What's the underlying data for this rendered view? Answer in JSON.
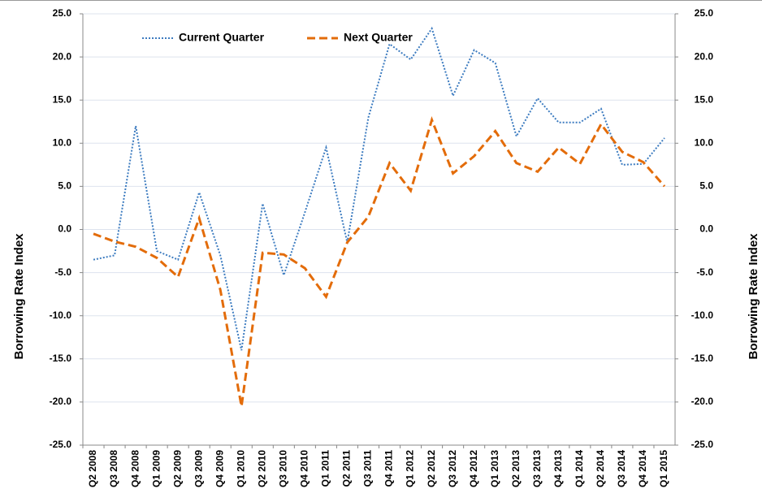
{
  "chart_data": {
    "type": "line",
    "y_label": "Borrowing  Rate Index",
    "y2_label": "Borrowing  Rate Index",
    "categories": [
      "Q2 2008",
      "Q3 2008",
      "Q4 2008",
      "Q1 2009",
      "Q2 2009",
      "Q3 2009",
      "Q4 2009",
      "Q1 2010",
      "Q2 2010",
      "Q3 2010",
      "Q4 2010",
      "Q1 2011",
      "Q2 2011",
      "Q3 2011",
      "Q4 2011",
      "Q1 2012",
      "Q2 2012",
      "Q3 2012",
      "Q4 2012",
      "Q1 2013",
      "Q2 2013",
      "Q3 2013",
      "Q4 2013",
      "Q1 2014",
      "Q2 2014",
      "Q3 2014",
      "Q4 2014",
      "Q1 2015"
    ],
    "series": [
      {
        "name": "Current Quarter",
        "color": "#3d7cc0",
        "dash": "dotted",
        "values": [
          -3.5,
          -3.0,
          12.0,
          -2.5,
          -3.5,
          4.3,
          -3.0,
          -14.0,
          3.0,
          -5.3,
          2.0,
          9.5,
          -1.5,
          13.0,
          21.5,
          19.7,
          23.3,
          15.5,
          20.8,
          19.3,
          10.8,
          15.2,
          12.4,
          12.4,
          14.0,
          7.5,
          7.6,
          10.6
        ]
      },
      {
        "name": "Next Quarter",
        "color": "#e36c0a",
        "dash": "dashed",
        "values": [
          -0.5,
          -1.4,
          -2.0,
          -3.3,
          -5.5,
          1.3,
          -7.0,
          -20.5,
          -2.7,
          -2.9,
          -4.5,
          -7.8,
          -1.5,
          1.5,
          7.7,
          4.5,
          12.7,
          6.5,
          8.5,
          11.4,
          7.7,
          6.7,
          9.5,
          7.6,
          12.2,
          9.0,
          7.8,
          5.0
        ]
      }
    ],
    "ylim": [
      -25,
      25
    ],
    "yticks": [
      {
        "value": -25,
        "label": "-25.0"
      },
      {
        "value": -20,
        "label": "-20.0"
      },
      {
        "value": -15,
        "label": "-15.0"
      },
      {
        "value": -10,
        "label": "-10.0"
      },
      {
        "value": -5,
        "label": "-5.0"
      },
      {
        "value": 0,
        "label": "0.0"
      },
      {
        "value": 5,
        "label": "5.0"
      },
      {
        "value": 10,
        "label": "10.0"
      },
      {
        "value": 15,
        "label": "15.0"
      },
      {
        "value": 20,
        "label": "20.0"
      },
      {
        "value": 25,
        "label": "25.0"
      }
    ],
    "y2lim": [
      -25,
      25
    ],
    "y2ticks": [
      {
        "value": -25,
        "label": "-25.0"
      },
      {
        "value": -20,
        "label": "-20.0"
      },
      {
        "value": -15,
        "label": "-15.0"
      },
      {
        "value": -10,
        "label": "-10.0"
      },
      {
        "value": -5,
        "label": "-5.0"
      },
      {
        "value": 0,
        "label": "0.0"
      },
      {
        "value": 5,
        "label": "5.0"
      },
      {
        "value": 10,
        "label": "10.0"
      },
      {
        "value": 15,
        "label": "15.0"
      },
      {
        "value": 20,
        "label": "20.0"
      },
      {
        "value": 25,
        "label": "25.0"
      }
    ],
    "grid": true,
    "legend": "top-left"
  }
}
